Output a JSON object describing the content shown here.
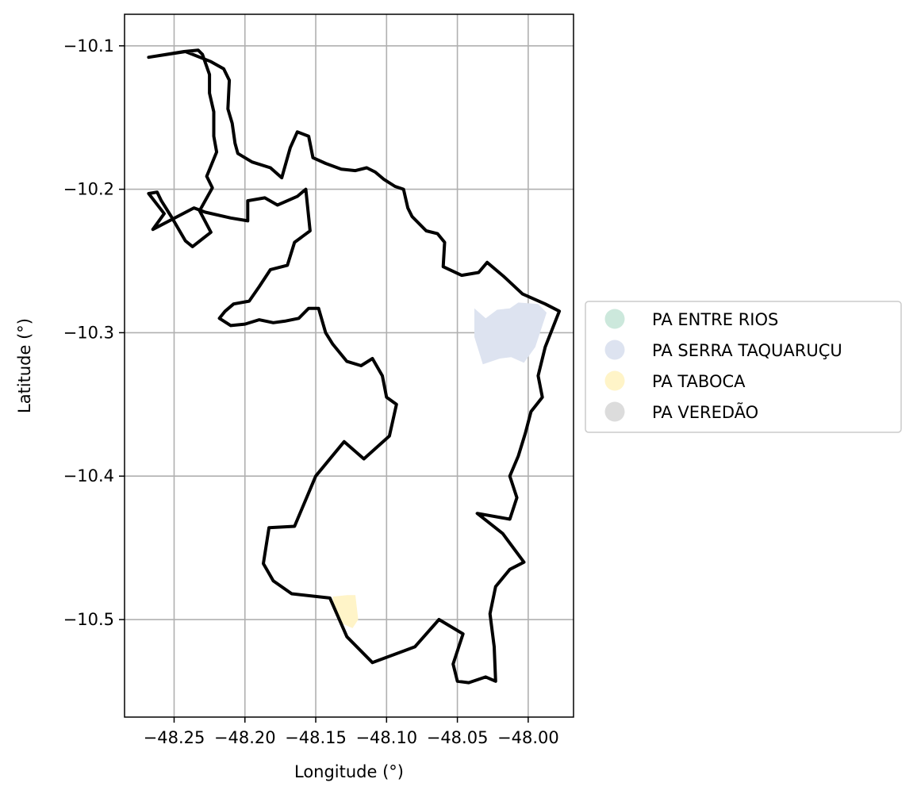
{
  "chart_data": {
    "type": "map",
    "xlabel": "Longitude (°)",
    "ylabel": "Latitude (°)",
    "xlim": [
      -48.285,
      -47.968
    ],
    "ylim": [
      -10.568,
      -10.078
    ],
    "xticks": [
      -48.25,
      -48.2,
      -48.15,
      -48.1,
      -48.05,
      -48.0
    ],
    "yticks": [
      -10.1,
      -10.2,
      -10.3,
      -10.4,
      -10.5
    ],
    "xtick_labels": [
      "−48.25",
      "−48.20",
      "−48.15",
      "−48.10",
      "−48.05",
      "−48.00"
    ],
    "ytick_labels": [
      "−10.1",
      "−10.2",
      "−10.3",
      "−10.4",
      "−10.5"
    ],
    "grid": true,
    "legend_position": "center-right outside",
    "boundary_color": "#000000",
    "boundary": [
      [
        -48.268,
        -10.108
      ],
      [
        -48.243,
        -10.104
      ],
      [
        -48.233,
        -10.103
      ],
      [
        -48.23,
        -10.106
      ],
      [
        -48.225,
        -10.12
      ],
      [
        -48.225,
        -10.133
      ],
      [
        -48.222,
        -10.146
      ],
      [
        -48.222,
        -10.163
      ],
      [
        -48.22,
        -10.174
      ],
      [
        -48.227,
        -10.191
      ],
      [
        -48.223,
        -10.199
      ],
      [
        -48.232,
        -10.215
      ],
      [
        -48.224,
        -10.23
      ],
      [
        -48.237,
        -10.24
      ],
      [
        -48.242,
        -10.236
      ],
      [
        -48.252,
        -10.219
      ],
      [
        -48.259,
        -10.208
      ],
      [
        -48.262,
        -10.202
      ],
      [
        -48.268,
        -10.203
      ],
      [
        -48.257,
        -10.217
      ],
      [
        -48.265,
        -10.228
      ],
      [
        -48.236,
        -10.213
      ],
      [
        -48.228,
        -10.216
      ],
      [
        -48.21,
        -10.22
      ],
      [
        -48.198,
        -10.222
      ],
      [
        -48.198,
        -10.208
      ],
      [
        -48.186,
        -10.206
      ],
      [
        -48.177,
        -10.211
      ],
      [
        -48.163,
        -10.205
      ],
      [
        -48.157,
        -10.2
      ],
      [
        -48.154,
        -10.229
      ],
      [
        -48.165,
        -10.237
      ],
      [
        -48.17,
        -10.253
      ],
      [
        -48.182,
        -10.256
      ],
      [
        -48.19,
        -10.268
      ],
      [
        -48.197,
        -10.278
      ],
      [
        -48.208,
        -10.28
      ],
      [
        -48.214,
        -10.285
      ],
      [
        -48.218,
        -10.29
      ],
      [
        -48.21,
        -10.295
      ],
      [
        -48.2,
        -10.294
      ],
      [
        -48.19,
        -10.291
      ],
      [
        -48.18,
        -10.293
      ],
      [
        -48.172,
        -10.292
      ],
      [
        -48.162,
        -10.29
      ],
      [
        -48.155,
        -10.283
      ],
      [
        -48.148,
        -10.283
      ],
      [
        -48.143,
        -10.3
      ],
      [
        -48.138,
        -10.308
      ],
      [
        -48.128,
        -10.32
      ],
      [
        -48.118,
        -10.323
      ],
      [
        -48.11,
        -10.318
      ],
      [
        -48.103,
        -10.33
      ],
      [
        -48.1,
        -10.345
      ],
      [
        -48.093,
        -10.35
      ],
      [
        -48.098,
        -10.372
      ],
      [
        -48.116,
        -10.388
      ],
      [
        -48.13,
        -10.376
      ],
      [
        -48.15,
        -10.4
      ],
      [
        -48.165,
        -10.435
      ],
      [
        -48.183,
        -10.436
      ],
      [
        -48.187,
        -10.461
      ],
      [
        -48.18,
        -10.473
      ],
      [
        -48.167,
        -10.482
      ],
      [
        -48.14,
        -10.485
      ],
      [
        -48.128,
        -10.512
      ],
      [
        -48.11,
        -10.53
      ],
      [
        -48.08,
        -10.519
      ],
      [
        -48.063,
        -10.5
      ],
      [
        -48.046,
        -10.51
      ],
      [
        -48.053,
        -10.531
      ],
      [
        -48.05,
        -10.543
      ],
      [
        -48.042,
        -10.544
      ],
      [
        -48.03,
        -10.54
      ],
      [
        -48.023,
        -10.543
      ],
      [
        -48.024,
        -10.519
      ],
      [
        -48.027,
        -10.496
      ],
      [
        -48.023,
        -10.477
      ],
      [
        -48.013,
        -10.465
      ],
      [
        -48.003,
        -10.46
      ],
      [
        -48.018,
        -10.44
      ],
      [
        -48.036,
        -10.426
      ],
      [
        -48.013,
        -10.43
      ],
      [
        -48.008,
        -10.415
      ],
      [
        -48.013,
        -10.4
      ],
      [
        -48.007,
        -10.386
      ],
      [
        -48.002,
        -10.37
      ],
      [
        -47.998,
        -10.355
      ],
      [
        -47.99,
        -10.345
      ],
      [
        -47.993,
        -10.33
      ],
      [
        -47.988,
        -10.31
      ],
      [
        -47.978,
        -10.285
      ],
      [
        -47.988,
        -10.28
      ],
      [
        -48.004,
        -10.273
      ],
      [
        -48.017,
        -10.261
      ],
      [
        -48.029,
        -10.251
      ],
      [
        -48.035,
        -10.258
      ],
      [
        -48.047,
        -10.26
      ],
      [
        -48.06,
        -10.254
      ],
      [
        -48.059,
        -10.237
      ],
      [
        -48.064,
        -10.231
      ],
      [
        -48.072,
        -10.229
      ],
      [
        -48.082,
        -10.219
      ],
      [
        -48.085,
        -10.213
      ],
      [
        -48.088,
        -10.2
      ],
      [
        -48.094,
        -10.198
      ],
      [
        -48.102,
        -10.193
      ],
      [
        -48.108,
        -10.188
      ],
      [
        -48.114,
        -10.185
      ],
      [
        -48.122,
        -10.187
      ],
      [
        -48.132,
        -10.186
      ],
      [
        -48.143,
        -10.182
      ],
      [
        -48.152,
        -10.178
      ],
      [
        -48.155,
        -10.163
      ],
      [
        -48.163,
        -10.16
      ],
      [
        -48.168,
        -10.171
      ],
      [
        -48.174,
        -10.192
      ],
      [
        -48.182,
        -10.185
      ],
      [
        -48.195,
        -10.181
      ],
      [
        -48.205,
        -10.175
      ],
      [
        -48.207,
        -10.168
      ],
      [
        -48.209,
        -10.154
      ],
      [
        -48.212,
        -10.144
      ],
      [
        -48.211,
        -10.124
      ],
      [
        -48.215,
        -10.116
      ],
      [
        -48.224,
        -10.111
      ],
      [
        -48.242,
        -10.104
      ],
      [
        -48.268,
        -10.108
      ]
    ],
    "regions": [
      {
        "name": "PA SERRA TAQUARUÇU",
        "color": "#dde3f0",
        "polygon": [
          [
            -48.038,
            -10.283
          ],
          [
            -48.03,
            -10.29
          ],
          [
            -48.022,
            -10.284
          ],
          [
            -48.013,
            -10.283
          ],
          [
            -48.007,
            -10.279
          ],
          [
            -47.993,
            -10.28
          ],
          [
            -47.987,
            -10.286
          ],
          [
            -47.995,
            -10.31
          ],
          [
            -48.003,
            -10.321
          ],
          [
            -48.012,
            -10.317
          ],
          [
            -48.02,
            -10.318
          ],
          [
            -48.032,
            -10.322
          ],
          [
            -48.038,
            -10.303
          ]
        ]
      },
      {
        "name": "PA TABOCA",
        "color": "#fff4c8",
        "polygon": [
          [
            -48.138,
            -10.484
          ],
          [
            -48.128,
            -10.483
          ],
          [
            -48.122,
            -10.483
          ],
          [
            -48.12,
            -10.5
          ],
          [
            -48.124,
            -10.506
          ],
          [
            -48.131,
            -10.503
          ],
          [
            -48.137,
            -10.495
          ]
        ]
      }
    ],
    "legend": [
      {
        "label": "PA ENTRE RIOS",
        "color": "#cce8dc"
      },
      {
        "label": "PA SERRA TAQUARUÇU",
        "color": "#dde3f0"
      },
      {
        "label": "PA TABOCA",
        "color": "#fff4c8"
      },
      {
        "label": "PA VEREDÃO",
        "color": "#dcdcdc"
      }
    ]
  }
}
